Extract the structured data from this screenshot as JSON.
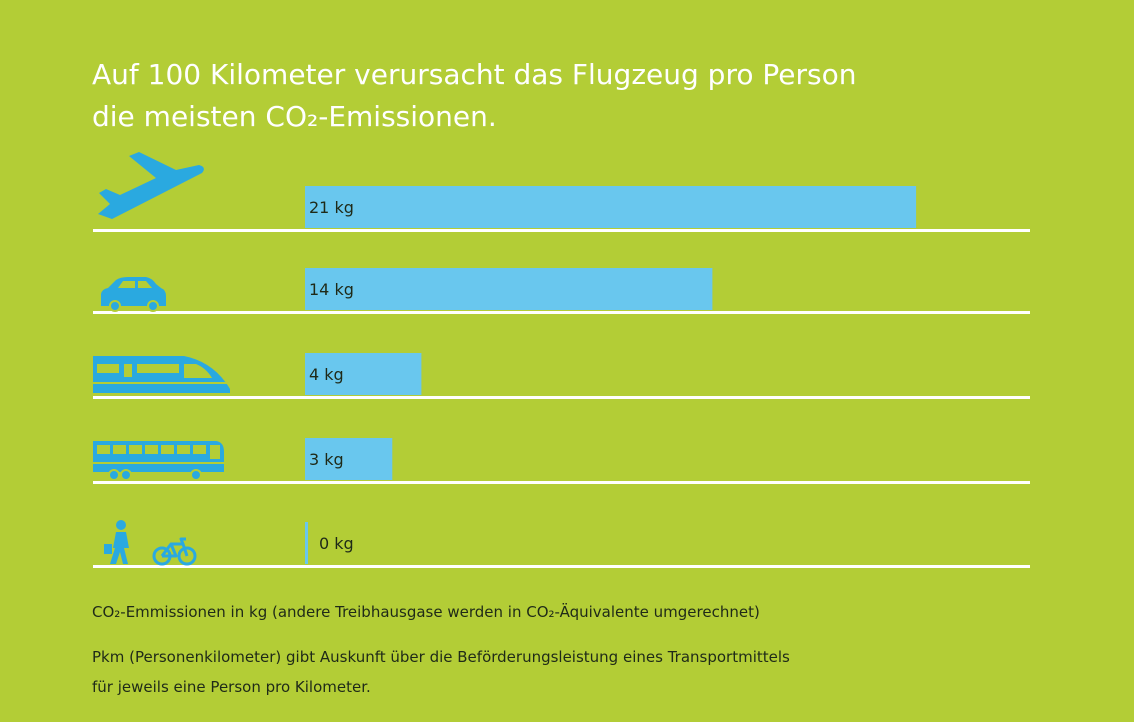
{
  "title": {
    "line1": "Auf 100 Kilometer verursacht das Flugzeug pro Person",
    "line2": "die meisten CO₂-Emissionen."
  },
  "chart_data": {
    "type": "bar",
    "orientation": "horizontal",
    "categories": [
      "plane-icon",
      "car-icon",
      "train-icon",
      "bus-icon",
      "walking-cycling-icon"
    ],
    "values": [
      21,
      14,
      4,
      3,
      0
    ],
    "value_labels": [
      "21 kg",
      "14 kg",
      "4 kg",
      "3 kg",
      "0 kg"
    ],
    "unit": "kg",
    "xlim": [
      0,
      25
    ],
    "grid": false,
    "legend": "none"
  },
  "notes": {
    "emissions": "CO₂-Emmissionen in kg (andere Treibhausgase werden in CO₂-Äquivalente umgerechnet)",
    "pkm_line1": "Pkm (Personenkilometer) gibt Auskunft über die Beförderungsleistung eines Transportmittels",
    "pkm_line2": "für jeweils eine Person pro Kilometer."
  },
  "colors": {
    "background": "#b3cd36",
    "bar": "#69c7ee",
    "icon": "#2aa9e0",
    "rule": "#ffffff",
    "title": "#ffffff",
    "text": "#1f2a18"
  }
}
